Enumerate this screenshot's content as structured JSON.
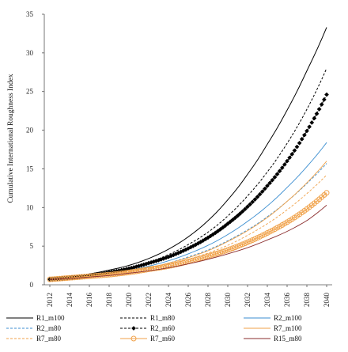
{
  "chart_data": {
    "type": "line",
    "ylabel": "Cumulative International Roughness Index",
    "ylim": [
      0,
      35
    ],
    "yticks": [
      0,
      5,
      10,
      15,
      20,
      25,
      30,
      35
    ],
    "x": [
      2012,
      2014,
      2016,
      2018,
      2020,
      2022,
      2024,
      2026,
      2028,
      2030,
      2032,
      2034,
      2036,
      2038,
      2040
    ],
    "grid": false,
    "legend_position": "bottom",
    "series": [
      {
        "name": "R1_m100",
        "color": "#000000",
        "dash": "solid",
        "marker": "none",
        "values": [
          0.7,
          1.0,
          1.4,
          1.9,
          2.5,
          3.4,
          4.6,
          6.2,
          8.3,
          11.0,
          14.3,
          18.2,
          22.6,
          27.7,
          33.3
        ]
      },
      {
        "name": "R1_m80",
        "color": "#000000",
        "dash": "dash",
        "marker": "none",
        "values": [
          0.7,
          1.0,
          1.3,
          1.7,
          2.2,
          2.9,
          3.9,
          5.2,
          6.8,
          8.9,
          11.5,
          14.6,
          18.3,
          22.7,
          28.0
        ]
      },
      {
        "name": "R2_m100",
        "color": "#3b8ed0",
        "dash": "solid",
        "marker": "none",
        "values": [
          0.7,
          0.9,
          1.2,
          1.5,
          1.9,
          2.4,
          3.1,
          4.0,
          5.1,
          6.5,
          8.2,
          10.2,
          12.6,
          15.3,
          18.4
        ]
      },
      {
        "name": "R2_m80",
        "color": "#3b8ed0",
        "dash": "dash",
        "marker": "none",
        "values": [
          0.7,
          0.9,
          1.1,
          1.4,
          1.8,
          2.2,
          2.8,
          3.6,
          4.5,
          5.7,
          7.1,
          8.8,
          10.8,
          13.1,
          15.7
        ]
      },
      {
        "name": "R2_m60",
        "color": "#000000",
        "dash": "dash",
        "marker": "diamond",
        "values": [
          0.7,
          0.9,
          1.2,
          1.6,
          2.1,
          2.8,
          3.6,
          4.7,
          6.1,
          7.9,
          10.1,
          12.8,
          16.0,
          19.9,
          24.6
        ]
      },
      {
        "name": "R7_m100",
        "color": "#f0a24a",
        "dash": "solid",
        "marker": "none",
        "values": [
          0.7,
          0.9,
          1.1,
          1.4,
          1.8,
          2.2,
          2.8,
          3.5,
          4.4,
          5.6,
          7.0,
          8.7,
          10.8,
          13.2,
          16.0
        ]
      },
      {
        "name": "R7_m80",
        "color": "#f0a24a",
        "dash": "dash",
        "marker": "none",
        "values": [
          0.7,
          0.9,
          1.1,
          1.4,
          1.7,
          2.1,
          2.6,
          3.3,
          4.1,
          5.1,
          6.4,
          7.9,
          9.7,
          11.8,
          14.2
        ]
      },
      {
        "name": "R7_m60",
        "color": "#f0a24a",
        "dash": "solid",
        "marker": "circle",
        "values": [
          0.7,
          0.9,
          1.1,
          1.3,
          1.6,
          2.0,
          2.4,
          3.0,
          3.7,
          4.5,
          5.5,
          6.7,
          8.1,
          9.8,
          11.9
        ]
      },
      {
        "name": "R15_m80",
        "color": "#8a2c2c",
        "dash": "solid",
        "marker": "none",
        "values": [
          0.7,
          0.8,
          1.0,
          1.2,
          1.5,
          1.8,
          2.2,
          2.7,
          3.3,
          4.0,
          4.8,
          5.8,
          6.9,
          8.3,
          10.3
        ]
      }
    ]
  }
}
